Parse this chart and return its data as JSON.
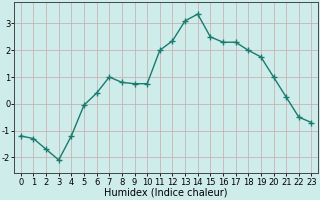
{
  "x": [
    0,
    1,
    2,
    3,
    4,
    5,
    6,
    7,
    8,
    9,
    10,
    11,
    12,
    13,
    14,
    15,
    16,
    17,
    18,
    19,
    20,
    21,
    22,
    23
  ],
  "y": [
    -1.2,
    -1.3,
    -1.7,
    -2.1,
    -1.2,
    -0.05,
    0.4,
    1.0,
    0.8,
    0.75,
    0.75,
    2.0,
    2.35,
    3.1,
    3.35,
    2.5,
    2.3,
    2.3,
    2.0,
    1.75,
    1.0,
    0.25,
    -0.5,
    -0.7
  ],
  "line_color": "#1a7a6e",
  "marker": "+",
  "marker_size": 4,
  "xlabel": "Humidex (Indice chaleur)",
  "xlim": [
    -0.5,
    23.5
  ],
  "ylim": [
    -2.6,
    3.8
  ],
  "yticks": [
    -2,
    -1,
    0,
    1,
    2,
    3
  ],
  "xticks": [
    0,
    1,
    2,
    3,
    4,
    5,
    6,
    7,
    8,
    9,
    10,
    11,
    12,
    13,
    14,
    15,
    16,
    17,
    18,
    19,
    20,
    21,
    22,
    23
  ],
  "bg_color": "#ceecea",
  "grid_color": "#c8a8a8",
  "xlabel_fontsize": 7,
  "tick_fontsize": 6,
  "line_width": 1.0
}
